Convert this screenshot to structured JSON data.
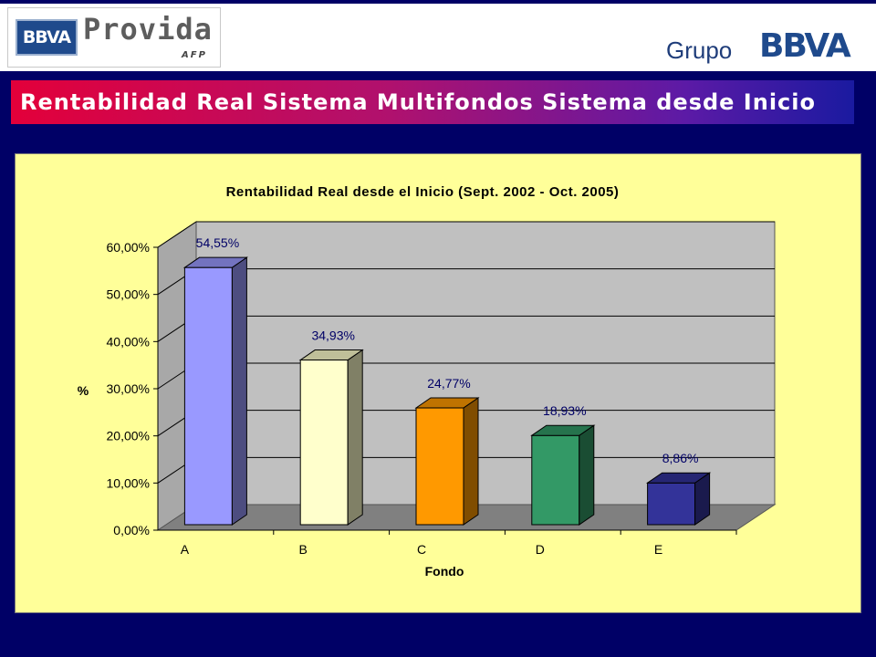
{
  "header": {
    "logo_bbva": "BBVA",
    "logo_provida": "Provida",
    "logo_afp": "AFP",
    "grupo_label": "Grupo",
    "grupo_brand": "BBVA"
  },
  "slide": {
    "title": "Rentabilidad Real Sistema Multifondos Sistema desde Inicio"
  },
  "colors": {
    "background": "#000066",
    "chart_area": "#ffff99",
    "plot_wall": "#c0c0c0",
    "floor": "#808080"
  },
  "chart_data": {
    "type": "bar",
    "title": "Rentabilidad Real desde el Inicio (Sept. 2002 - Oct. 2005)",
    "xlabel": "Fondo",
    "ylabel": "%",
    "categories": [
      "A",
      "B",
      "C",
      "D",
      "E"
    ],
    "values": [
      54.55,
      34.93,
      24.77,
      18.93,
      8.86
    ],
    "data_labels": [
      "54,55%",
      "34,93%",
      "24,77%",
      "18,93%",
      "8,86%"
    ],
    "bar_colors": [
      "#9999ff",
      "#ffffcc",
      "#ff9900",
      "#339966",
      "#333399"
    ],
    "ylim": [
      0,
      60
    ],
    "yticks": [
      "0,00%",
      "10,00%",
      "20,00%",
      "30,00%",
      "40,00%",
      "50,00%",
      "60,00%"
    ],
    "grid": true,
    "legend": "none"
  }
}
